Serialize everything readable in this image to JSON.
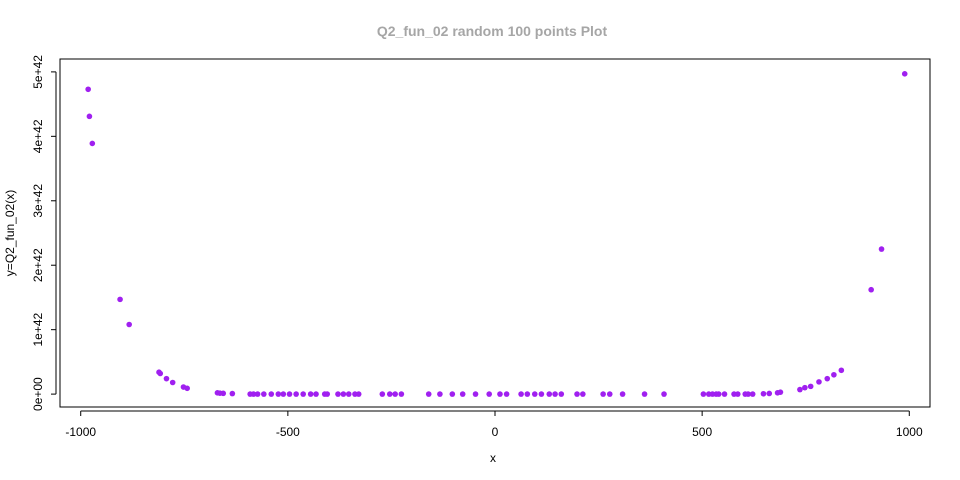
{
  "chart_data": {
    "type": "scatter",
    "title": "Q2_fun_02 random 100 points Plot",
    "xlabel": "x",
    "ylabel": "y=Q2_fun_02(x)",
    "xlim": [
      -1050,
      1050
    ],
    "ylim": [
      -2e+41,
      5.2e+42
    ],
    "x_ticks": [
      -1000,
      -500,
      0,
      500,
      1000
    ],
    "x_tick_labels": [
      "-1000",
      "-500",
      "0",
      "500",
      "1000"
    ],
    "y_ticks": [
      0,
      1e+42,
      2e+42,
      3e+42,
      4e+42,
      5e+42
    ],
    "y_tick_labels": [
      "0e+00",
      "1e+42",
      "2e+42",
      "3e+42",
      "4e+42",
      "5e+42"
    ],
    "grid": false,
    "point_color": "#a020f0",
    "x": [
      -982,
      -979,
      -972,
      -905,
      -883,
      -811,
      -808,
      -793,
      -778,
      -752,
      -743,
      -670,
      -664,
      -656,
      -634,
      -591,
      -583,
      -573,
      -558,
      -540,
      -523,
      -511,
      -496,
      -480,
      -463,
      -445,
      -432,
      -411,
      -405,
      -379,
      -366,
      -353,
      -338,
      -329,
      -272,
      -254,
      -241,
      -226,
      -160,
      -133,
      -103,
      -78,
      -47,
      -14,
      12,
      28,
      63,
      78,
      96,
      112,
      131,
      145,
      160,
      198,
      212,
      261,
      277,
      308,
      361,
      408,
      503,
      516,
      525,
      534,
      540,
      554,
      577,
      586,
      604,
      611,
      622,
      648,
      662,
      682,
      689,
      736,
      748,
      762,
      782,
      802,
      818,
      836,
      908,
      933,
      989
    ],
    "y": [
      4.73e+42,
      4.31e+42,
      3.89e+42,
      1.47e+42,
      1.08e+42,
      3.4e+41,
      3.2e+41,
      2.4e+41,
      1.8e+41,
      1.1e+41,
      9e+40,
      2e+40,
      1.5e+40,
      1.2e+40,
      8e+39,
      0,
      0,
      0,
      0,
      0,
      0,
      0,
      0,
      0,
      0,
      0,
      0,
      0,
      0,
      0,
      0,
      0,
      0,
      0,
      0,
      0,
      0,
      0,
      0,
      0,
      0,
      0,
      0,
      0,
      0,
      0,
      0,
      0,
      0,
      0,
      0,
      0,
      0,
      0,
      0,
      0,
      0,
      0,
      0,
      0,
      0,
      0,
      0,
      0,
      0,
      0,
      0,
      0,
      0,
      0,
      0,
      5e+39,
      1e+40,
      2e+40,
      3e+40,
      7e+40,
      1e+41,
      1.2e+41,
      1.9e+41,
      2.4e+41,
      3e+41,
      3.7e+41,
      1.62e+42,
      2.25e+42,
      4.97e+42
    ]
  }
}
